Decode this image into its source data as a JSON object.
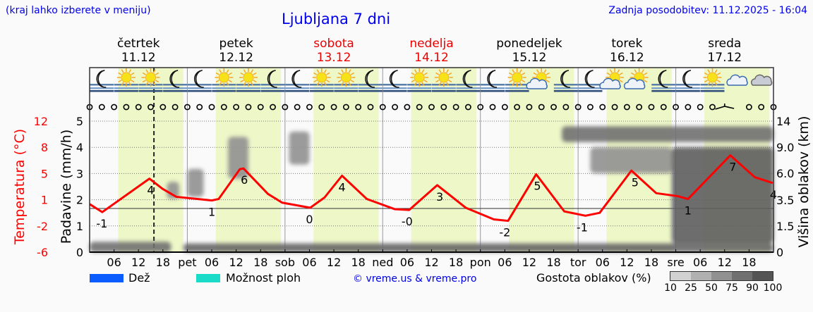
{
  "header": {
    "hint": "(kraj lahko izberete v meniju)",
    "title": "Ljubljana 7 dni",
    "updated": "Zadnja posodobitev: 11.12.2025 - 16:04"
  },
  "days": [
    {
      "name": "četrtek",
      "date": "11.12",
      "weekend": false
    },
    {
      "name": "petek",
      "date": "12.12",
      "weekend": false
    },
    {
      "name": "sobota",
      "date": "13.12",
      "weekend": true
    },
    {
      "name": "nedelja",
      "date": "14.12",
      "weekend": true
    },
    {
      "name": "ponedeljek",
      "date": "15.12",
      "weekend": false
    },
    {
      "name": "torek",
      "date": "16.12",
      "weekend": false
    },
    {
      "name": "sreda",
      "date": "17.12",
      "weekend": false
    }
  ],
  "weather_icons": [
    "moon-fog",
    "sun-fog",
    "sun-fog",
    "moon-fog",
    "moon-fog",
    "sun-fog",
    "sun-fog",
    "moon-fog",
    "moon-fog",
    "sun-fog",
    "sun-fog",
    "moon-fog",
    "moon-fog",
    "sun-fog",
    "sun-fog",
    "moon-fog",
    "moon-fog",
    "sun-fog",
    "sun-cloud",
    "moon-fog",
    "moon-fog",
    "sun-cloud",
    "sun-cloud",
    "moon-fog",
    "moon-fog",
    "sun-fog",
    "cloudy",
    "cloudy-dark"
  ],
  "colors": {
    "temperature": "#ff0000",
    "rain": "#0a5cff",
    "showers": "#1adbc8",
    "daylight": "#eef7c8",
    "weekend": "#ee0000",
    "link": "#0000ee"
  },
  "legend": {
    "rain": "Dež",
    "showers": "Možnost ploh",
    "copyright": "© vreme.us & vreme.pro",
    "cloud_title": "Gostota oblakov (%)",
    "cloud_levels": [
      "10",
      "25",
      "50",
      "75",
      "90",
      "100"
    ]
  },
  "chart_data": {
    "type": "line",
    "title": "Ljubljana 7 dni",
    "x_unit": "hours from 11.12 00:00",
    "x_ticks": [
      "06",
      "12",
      "18",
      "pet",
      "06",
      "12",
      "18",
      "sob",
      "06",
      "12",
      "18",
      "ned",
      "06",
      "12",
      "18",
      "pon",
      "06",
      "12",
      "18",
      "tor",
      "06",
      "12",
      "18",
      "sre",
      "06",
      "12",
      "18"
    ],
    "current_time_hours": 15.8,
    "ylabel_left_temp": "Temperatura (°C)",
    "yticks_temp": [
      "12",
      "8",
      "5",
      "1",
      "-2",
      "-6"
    ],
    "ylim_temp": [
      -6,
      12
    ],
    "ylabel_precip": "Padavine (mm/h)",
    "yticks_precip": [
      "0",
      "1",
      "2",
      "3",
      "4",
      "5"
    ],
    "ylim_precip": [
      0,
      5
    ],
    "ylabel_right": "Višina oblakov (km)",
    "yticks_cloud": [
      "0",
      "1.5",
      "3.5",
      "6.0",
      "9.0",
      "14"
    ],
    "grid": true,
    "zero_temp_line": 0,
    "daylight_hours": [
      7,
      16
    ],
    "temperature": [
      [
        0,
        0.6
      ],
      [
        3.1,
        -0.5
      ],
      [
        14.7,
        4.1
      ],
      [
        17.9,
        2.7
      ],
      [
        21.3,
        1.6
      ],
      [
        30,
        1.1
      ],
      [
        31.7,
        1.3
      ],
      [
        36.9,
        5.4
      ],
      [
        37.8,
        5.5
      ],
      [
        43.8,
        2.0
      ],
      [
        47.3,
        0.8
      ],
      [
        54.2,
        0.1
      ],
      [
        57.7,
        1.5
      ],
      [
        62,
        4.5
      ],
      [
        68.1,
        1.3
      ],
      [
        75,
        -0.1
      ],
      [
        78.5,
        -0.2
      ],
      [
        85.4,
        3.2
      ],
      [
        92.4,
        0.1
      ],
      [
        99.3,
        -1.5
      ],
      [
        102.8,
        -1.7
      ],
      [
        109.7,
        4.7
      ],
      [
        116.6,
        -0.4
      ],
      [
        121.8,
        -1.0
      ],
      [
        125.3,
        -0.6
      ],
      [
        133.1,
        5.2
      ],
      [
        139.2,
        2.1
      ],
      [
        144.4,
        1.7
      ],
      [
        147,
        1.3
      ],
      [
        157.4,
        7.3
      ],
      [
        163.4,
        4.3
      ],
      [
        167.8,
        3.5
      ]
    ],
    "temp_labels": [
      [
        3,
        "-1"
      ],
      [
        15,
        "4"
      ],
      [
        30,
        "1"
      ],
      [
        38,
        "6"
      ],
      [
        54,
        "0"
      ],
      [
        62,
        "4"
      ],
      [
        78,
        "-0"
      ],
      [
        86,
        "3"
      ],
      [
        102,
        "-2"
      ],
      [
        110,
        "5"
      ],
      [
        121,
        "-1"
      ],
      [
        134,
        "5"
      ],
      [
        147,
        "1"
      ],
      [
        158,
        "7"
      ],
      [
        168,
        "4"
      ]
    ],
    "precipitation": [],
    "clouds": [
      {
        "h": [
          0,
          20
        ],
        "km": [
          0,
          0.6
        ],
        "density": 75
      },
      {
        "h": [
          23,
          168
        ],
        "km": [
          0,
          0.5
        ],
        "density": 80
      },
      {
        "h": [
          19,
          22
        ],
        "km": [
          3.6,
          5.2
        ],
        "density": 50
      },
      {
        "h": [
          24,
          28
        ],
        "km": [
          3.8,
          6.5
        ],
        "density": 50
      },
      {
        "h": [
          34,
          39
        ],
        "km": [
          5.5,
          11
        ],
        "density": 60
      },
      {
        "h": [
          49,
          54
        ],
        "km": [
          7,
          12
        ],
        "density": 50
      },
      {
        "h": [
          116,
          168
        ],
        "km": [
          10,
          13
        ],
        "density": 75
      },
      {
        "h": [
          123,
          143
        ],
        "km": [
          6,
          9
        ],
        "density": 50
      },
      {
        "h": [
          143,
          168
        ],
        "km": [
          0.5,
          9
        ],
        "density": 85
      }
    ]
  }
}
